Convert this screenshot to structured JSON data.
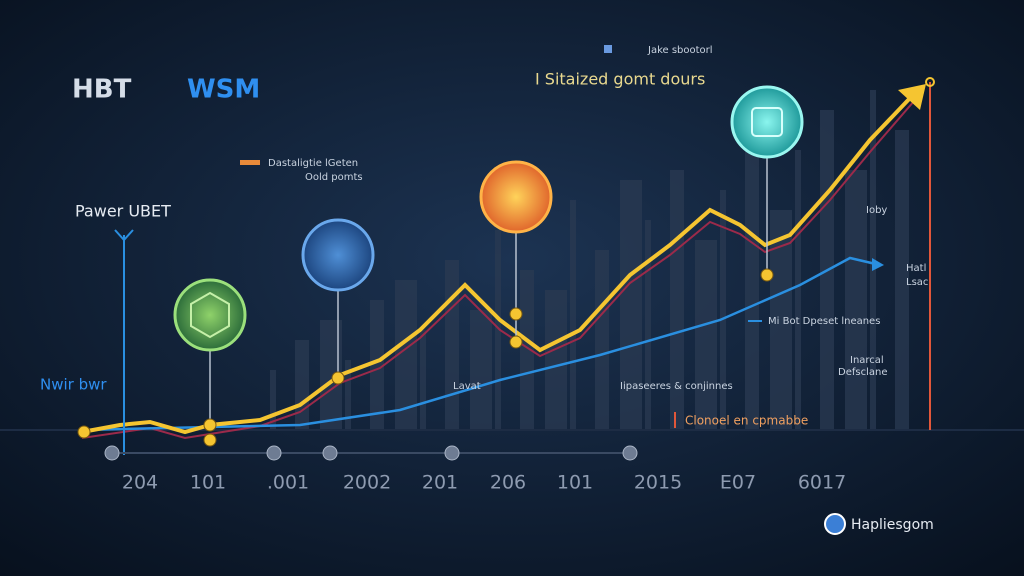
{
  "header": {
    "logo_left": "HBT",
    "logo_right": "WSM",
    "badge_note": "Jake sbootorl",
    "subtitle": "I Sitaized gomt dours"
  },
  "legend": {
    "line1": "Dastaligtie lGeten",
    "line2": "Oold pomts"
  },
  "labels": {
    "power": "Pawer UBET",
    "left_note": "Nwir bwr",
    "mid_small": "Lavat",
    "mid_note": "Iipaseeres & conjinnes",
    "blue_note": "Mi Bot Dpeset lneanes",
    "orange_note": "Clonoel en cpmabbe",
    "right_top": "Ioby",
    "right_a": "Hatl",
    "right_b": "Lsac",
    "right_c": "Inarcal",
    "right_d": "Defsclane"
  },
  "x_labels": [
    "204",
    "101",
    ".001",
    "2002",
    "201",
    "206",
    "101",
    "2015",
    "E07",
    "6017"
  ],
  "footer": "Hapliesgom"
}
